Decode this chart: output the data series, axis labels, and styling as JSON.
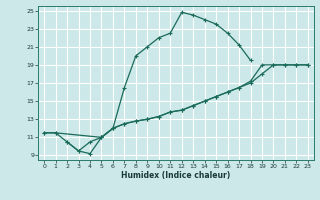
{
  "bg_color": "#cce8e8",
  "grid_color": "#ffffff",
  "line_color": "#1a6b5a",
  "xlabel": "Humidex (Indice chaleur)",
  "xlim": [
    -0.5,
    23.5
  ],
  "ylim": [
    8.5,
    25.5
  ],
  "xticks": [
    0,
    1,
    2,
    3,
    4,
    5,
    6,
    7,
    8,
    9,
    10,
    11,
    12,
    13,
    14,
    15,
    16,
    17,
    18,
    19,
    20,
    21,
    22,
    23
  ],
  "yticks": [
    9,
    11,
    13,
    15,
    17,
    19,
    21,
    23,
    25
  ],
  "line1": {
    "x": [
      0,
      1,
      2,
      3,
      4,
      5,
      6,
      7,
      8,
      9,
      10,
      11,
      12,
      13,
      14,
      15,
      16,
      17,
      18
    ],
    "y": [
      11.5,
      11.5,
      10.5,
      9.5,
      10.5,
      11,
      12,
      16.5,
      20,
      21,
      22,
      22.5,
      24.8,
      24.5,
      24,
      23.5,
      22.5,
      21.2,
      19.5
    ]
  },
  "line2": {
    "x": [
      2,
      3,
      4,
      5,
      6,
      7,
      8,
      9,
      10,
      11,
      12,
      13,
      14,
      15,
      16,
      17,
      18,
      19,
      20,
      21,
      22,
      23
    ],
    "y": [
      10.5,
      9.5,
      9.2,
      11,
      12,
      12.5,
      12.8,
      13,
      13.3,
      13.8,
      14,
      14.5,
      15,
      15.5,
      16,
      16.5,
      17.2,
      19,
      19,
      19,
      19,
      19
    ]
  },
  "line3": {
    "x": [
      0,
      1,
      5,
      6,
      7,
      8,
      9,
      10,
      11,
      12,
      13,
      14,
      15,
      16,
      17,
      18,
      19,
      20,
      21,
      22,
      23
    ],
    "y": [
      11.5,
      11.5,
      11,
      12,
      12.5,
      12.8,
      13,
      13.3,
      13.8,
      14,
      14.5,
      15,
      15.5,
      16,
      16.5,
      17,
      18,
      19,
      19,
      19,
      19
    ]
  }
}
